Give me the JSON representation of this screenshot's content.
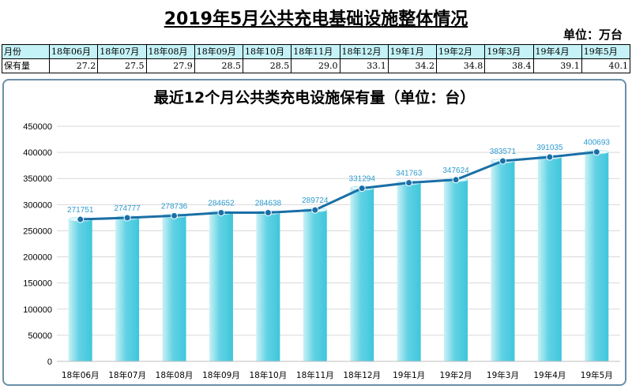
{
  "header": {
    "title": "2019年5月公共充电基础设施整体情况",
    "unit": "单位：万台"
  },
  "summary_table": {
    "row_label_month": "月份",
    "row_label_count": "保有量",
    "months": [
      "18年06月",
      "18年07月",
      "18年08月",
      "18年09月",
      "18年10月",
      "18年11月",
      "18年12月",
      "19年1月",
      "19年2月",
      "19年3月",
      "19年4月",
      "19年5月"
    ],
    "values": [
      "27.2",
      "27.5",
      "27.9",
      "28.5",
      "28.5",
      "29.0",
      "33.1",
      "34.2",
      "34.8",
      "38.4",
      "39.1",
      "40.1"
    ]
  },
  "chart_data": {
    "type": "bar",
    "title": "最近12个月公共类充电设施保有量（单位：台）",
    "categories": [
      "18年06月",
      "18年07月",
      "18年08月",
      "18年09月",
      "18年10月",
      "18年11月",
      "18年12月",
      "19年1月",
      "19年2月",
      "19年3月",
      "19年4月",
      "19年5月"
    ],
    "values": [
      271751,
      274777,
      278736,
      284652,
      284638,
      289724,
      331294,
      341763,
      347624,
      383571,
      391035,
      400693
    ],
    "overlay": "line",
    "ylim": [
      0,
      450000
    ],
    "yticks": [
      "0",
      "50000",
      "100000",
      "150000",
      "200000",
      "250000",
      "300000",
      "350000",
      "400000",
      "450000"
    ],
    "grid": true,
    "colors": {
      "bar": "#3fc6dc",
      "bar_light": "#c9f1f6",
      "line": "#1a6fa6",
      "label": "#2e9bd0",
      "grid": "#d9d9d9"
    }
  }
}
